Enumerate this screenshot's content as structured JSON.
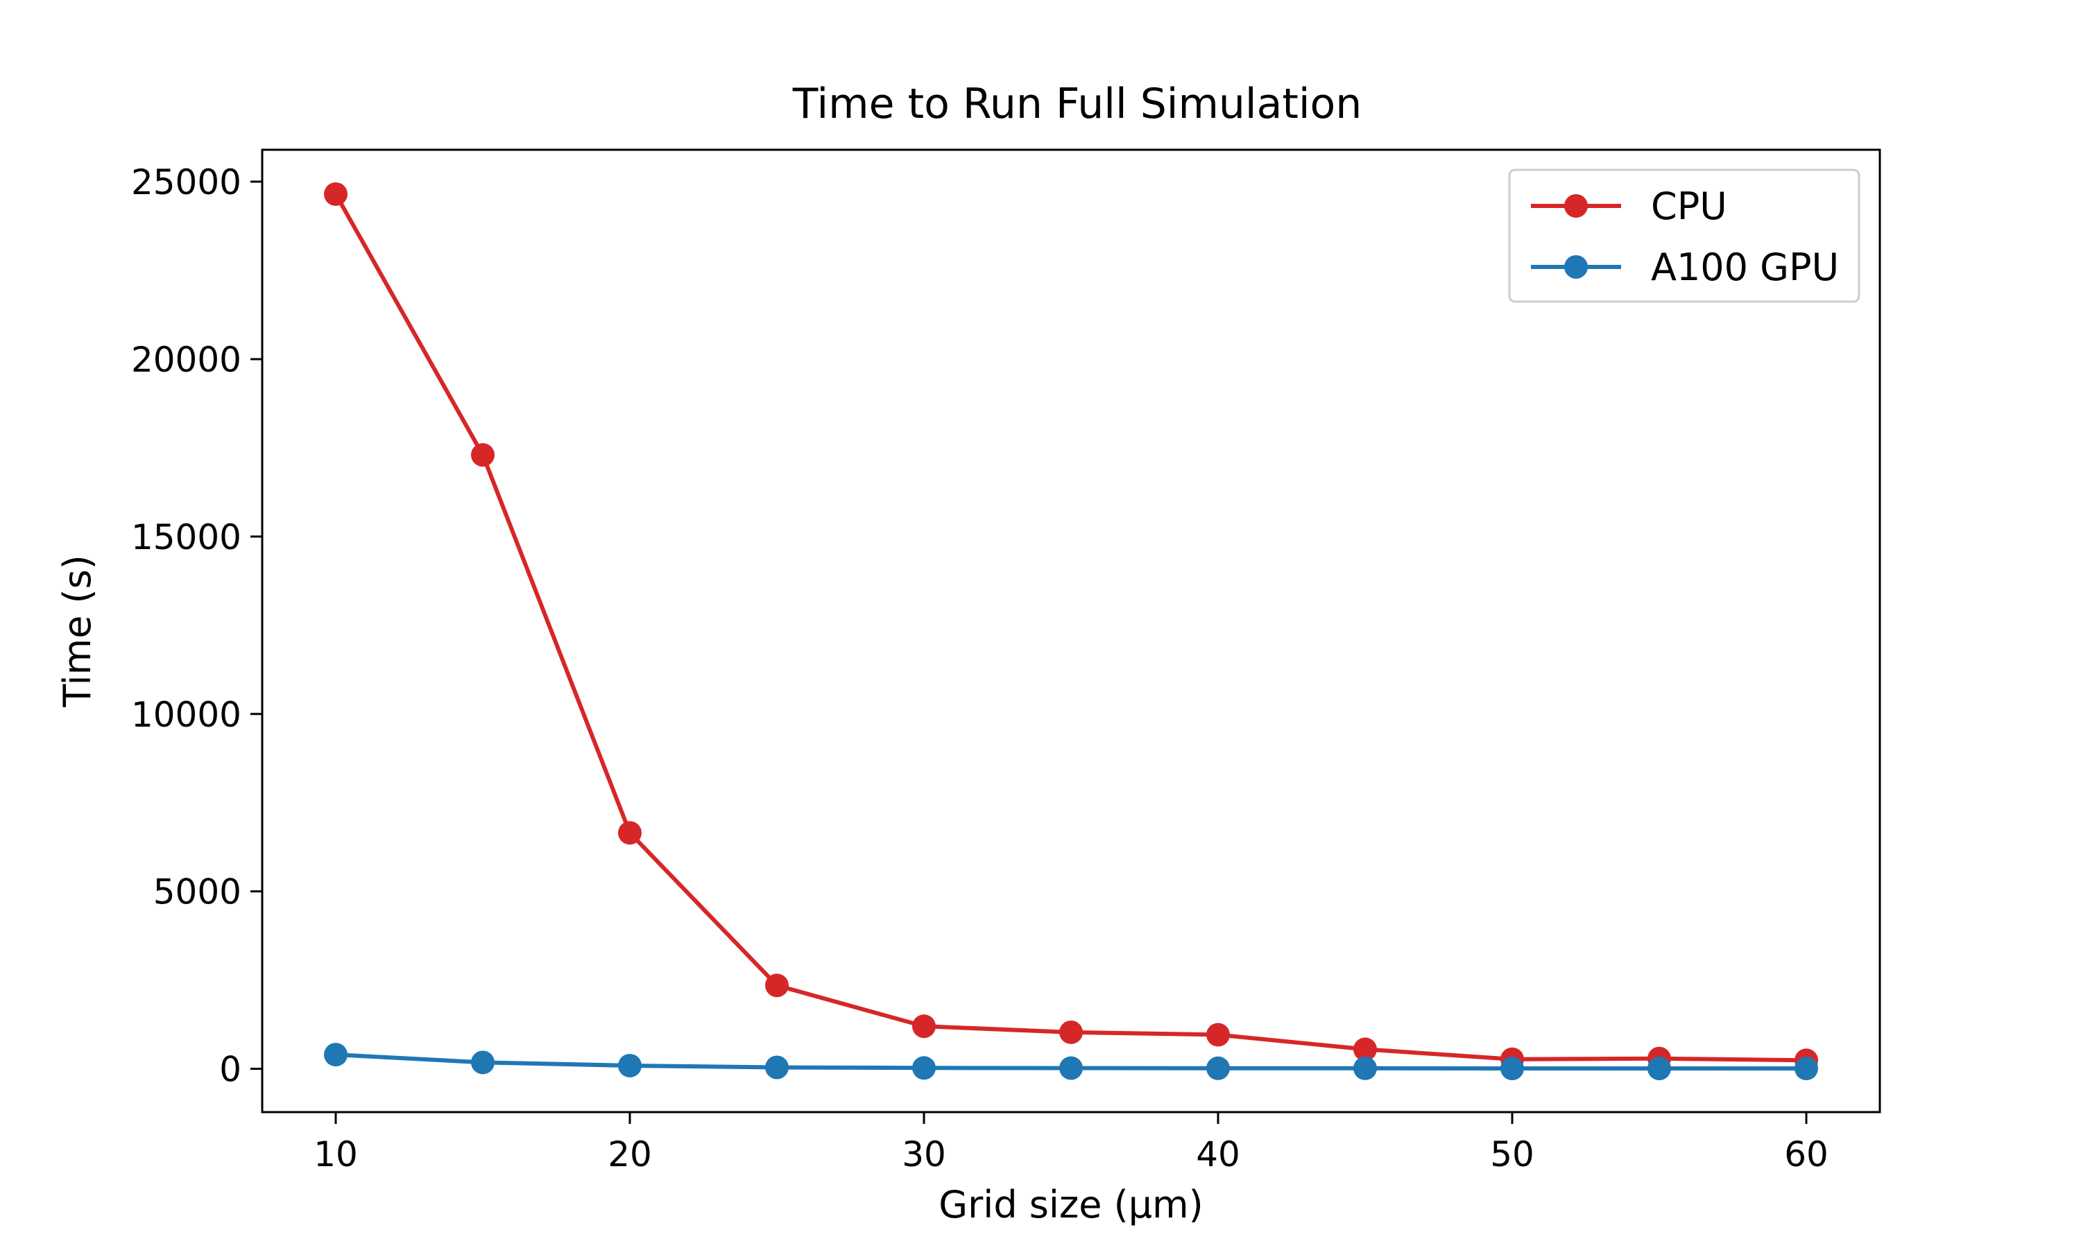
{
  "chart_data": {
    "type": "line",
    "title": "Time to Run Full Simulation",
    "xlabel": "Grid size (μm)",
    "ylabel": "Time (s)",
    "x": [
      10,
      15,
      20,
      25,
      30,
      35,
      40,
      45,
      50,
      55,
      60
    ],
    "xlim": [
      7.5,
      62.5
    ],
    "ylim": [
      -1220,
      25900
    ],
    "xticks": [
      10,
      20,
      30,
      40,
      50,
      60
    ],
    "yticks": [
      0,
      5000,
      10000,
      15000,
      20000,
      25000
    ],
    "grid": false,
    "legend_position": "upper-right",
    "series": [
      {
        "name": "CPU",
        "color": "#d62728",
        "values": [
          24650,
          17300,
          6650,
          2350,
          1200,
          1030,
          960,
          550,
          270,
          290,
          240
        ]
      },
      {
        "name": "A100 GPU",
        "color": "#1f77b4",
        "values": [
          400,
          180,
          90,
          40,
          25,
          20,
          15,
          15,
          10,
          10,
          10
        ]
      }
    ]
  }
}
